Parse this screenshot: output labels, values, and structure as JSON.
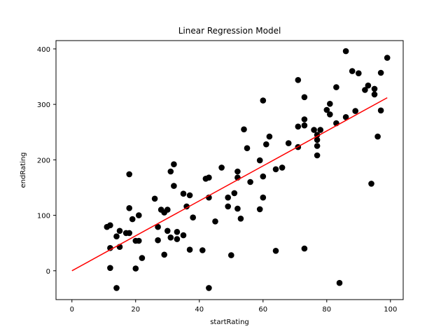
{
  "chart_data": {
    "type": "scatter",
    "title": "Linear Regression Model",
    "xlabel": "startRating",
    "ylabel": "endRating",
    "xlim": [
      -5,
      104
    ],
    "ylim": [
      -52,
      415
    ],
    "xticks": [
      0,
      20,
      40,
      60,
      80,
      100
    ],
    "yticks": [
      0,
      100,
      200,
      300,
      400
    ],
    "grid": false,
    "colors": {
      "points": "#000000",
      "fit_line": "#ff0000"
    },
    "series": [
      {
        "kind": "points",
        "points": [
          [
            11,
            79
          ],
          [
            12,
            82
          ],
          [
            12,
            5
          ],
          [
            12,
            41
          ],
          [
            14,
            62
          ],
          [
            14,
            -31
          ],
          [
            15,
            72
          ],
          [
            15,
            43
          ],
          [
            17,
            68
          ],
          [
            18,
            68
          ],
          [
            18,
            113
          ],
          [
            18,
            174
          ],
          [
            19,
            93
          ],
          [
            20,
            54
          ],
          [
            20,
            4
          ],
          [
            21,
            54
          ],
          [
            21,
            100
          ],
          [
            22,
            23
          ],
          [
            26,
            130
          ],
          [
            27,
            55
          ],
          [
            27,
            79
          ],
          [
            28,
            110
          ],
          [
            29,
            29
          ],
          [
            29,
            105
          ],
          [
            30,
            110
          ],
          [
            30,
            72
          ],
          [
            31,
            60
          ],
          [
            31,
            179
          ],
          [
            32,
            192
          ],
          [
            32,
            153
          ],
          [
            33,
            57
          ],
          [
            33,
            70
          ],
          [
            35,
            64
          ],
          [
            35,
            139
          ],
          [
            36,
            116
          ],
          [
            37,
            38
          ],
          [
            37,
            136
          ],
          [
            38,
            96
          ],
          [
            41,
            37
          ],
          [
            42,
            166
          ],
          [
            43,
            132
          ],
          [
            43,
            168
          ],
          [
            43,
            -31
          ],
          [
            45,
            89
          ],
          [
            47,
            186
          ],
          [
            49,
            116
          ],
          [
            49,
            132
          ],
          [
            50,
            28
          ],
          [
            51,
            140
          ],
          [
            52,
            112
          ],
          [
            52,
            179
          ],
          [
            52,
            168
          ],
          [
            53,
            94
          ],
          [
            54,
            255
          ],
          [
            55,
            221
          ],
          [
            56,
            160
          ],
          [
            59,
            199
          ],
          [
            59,
            111
          ],
          [
            60,
            132
          ],
          [
            60,
            170
          ],
          [
            60,
            307
          ],
          [
            61,
            228
          ],
          [
            62,
            242
          ],
          [
            64,
            183
          ],
          [
            64,
            36
          ],
          [
            66,
            186
          ],
          [
            68,
            230
          ],
          [
            71,
            260
          ],
          [
            71,
            223
          ],
          [
            71,
            344
          ],
          [
            73,
            313
          ],
          [
            73,
            273
          ],
          [
            73,
            262
          ],
          [
            73,
            40
          ],
          [
            76,
            254
          ],
          [
            77,
            245
          ],
          [
            77,
            225
          ],
          [
            77,
            208
          ],
          [
            77,
            236
          ],
          [
            78,
            254
          ],
          [
            80,
            290
          ],
          [
            81,
            282
          ],
          [
            81,
            301
          ],
          [
            83,
            331
          ],
          [
            83,
            266
          ],
          [
            84,
            -22
          ],
          [
            86,
            277
          ],
          [
            86,
            396
          ],
          [
            88,
            360
          ],
          [
            89,
            288
          ],
          [
            90,
            356
          ],
          [
            92,
            326
          ],
          [
            93,
            334
          ],
          [
            94,
            157
          ],
          [
            95,
            328
          ],
          [
            95,
            318
          ],
          [
            96,
            242
          ],
          [
            97,
            357
          ],
          [
            97,
            289
          ],
          [
            99,
            384
          ]
        ]
      },
      {
        "kind": "fit-line",
        "points": [
          [
            0,
            0
          ],
          [
            99,
            312
          ]
        ]
      }
    ]
  }
}
